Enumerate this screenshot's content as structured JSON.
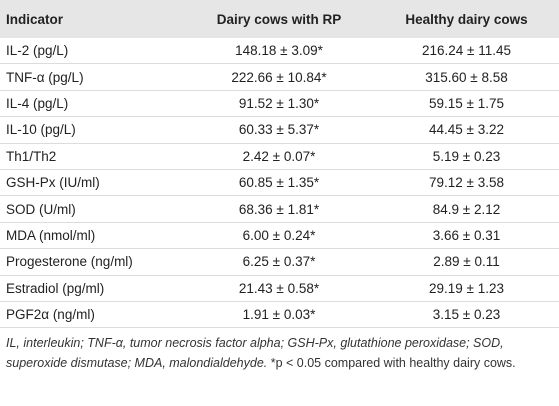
{
  "table": {
    "columns": [
      "Indicator",
      "Dairy cows with RP",
      "Healthy dairy cows"
    ],
    "rows": [
      [
        "IL-2 (pg/L)",
        "148.18 ± 3.09*",
        "216.24 ± 11.45"
      ],
      [
        "TNF-α (pg/L)",
        "222.66 ± 10.84*",
        "315.60 ± 8.58"
      ],
      [
        "IL-4 (pg/L)",
        "91.52 ± 1.30*",
        "59.15 ± 1.75"
      ],
      [
        "IL-10 (pg/L)",
        "60.33 ± 5.37*",
        "44.45 ± 3.22"
      ],
      [
        "Th1/Th2",
        "2.42 ± 0.07*",
        "5.19 ± 0.23"
      ],
      [
        "GSH-Px (IU/ml)",
        "60.85 ± 1.35*",
        "79.12 ± 3.58"
      ],
      [
        "SOD (U/ml)",
        "68.36 ± 1.81*",
        "84.9 ± 2.12"
      ],
      [
        "MDA (nmol/ml)",
        "6.00 ± 0.24*",
        "3.66 ± 0.31"
      ],
      [
        "Progesterone (ng/ml)",
        "6.25 ± 0.37*",
        "2.89 ± 0.11"
      ],
      [
        "Estradiol (pg/ml)",
        "21.43 ± 0.58*",
        "29.19 ± 1.23"
      ],
      [
        "PGF2α (ng/ml)",
        "1.91 ± 0.03*",
        "3.15 ± 0.23"
      ]
    ],
    "footnote": {
      "abbreviations": "IL, interleukin; TNF-α, tumor necrosis factor alpha; GSH-Px, glutathione peroxidase; SOD, superoxide dismutase; MDA, malondialdehyde.",
      "note": "*p < 0.05 compared with healthy dairy cows."
    }
  }
}
